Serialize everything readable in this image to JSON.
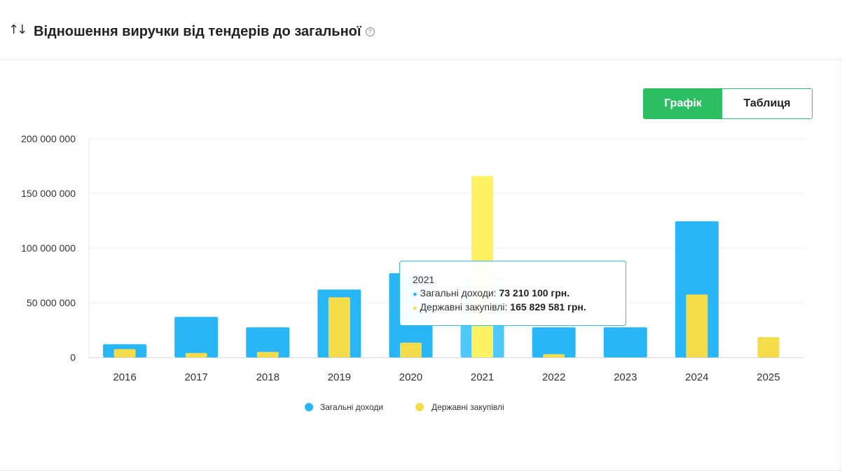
{
  "header": {
    "sort_icon": "↑↓",
    "title": "Відношення виручки від тендерів до загальної",
    "help_icon": "?"
  },
  "toggle": {
    "graph_label": "Графік",
    "table_label": "Таблиця",
    "active": "graph"
  },
  "colors": {
    "total": "#29b6f6",
    "total_highlight": "#4fc9fb",
    "gov": "#f4dc4a",
    "gov_highlight": "#fff263",
    "accent": "#2dbd63"
  },
  "chart_data": {
    "type": "bar",
    "title": "Відношення виручки від тендерів до загальної",
    "categories": [
      "2016",
      "2017",
      "2018",
      "2019",
      "2020",
      "2021",
      "2022",
      "2023",
      "2024",
      "2025"
    ],
    "series": [
      {
        "name": "Загальні доходи",
        "values": [
          12000000,
          37000000,
          27500000,
          62000000,
          77000000,
          73210100,
          27500000,
          27500000,
          124500000,
          0
        ]
      },
      {
        "name": "Державні закупівлі",
        "values": [
          7500000,
          4000000,
          5000000,
          55000000,
          13500000,
          165829581,
          3000000,
          0,
          57500000,
          18500000
        ]
      }
    ],
    "ylim": [
      0,
      200000000
    ],
    "yticks": [
      "0",
      "50 000 000",
      "100 000 000",
      "150 000 000",
      "200 000 000"
    ],
    "grid": true,
    "legend": "bottom-center",
    "highlighted_category": "2021"
  },
  "tooltip": {
    "year": "2021",
    "rows": [
      {
        "label": "Загальні доходи:",
        "value": "73 210 100 грн.",
        "color": "#29b6f6"
      },
      {
        "label": "Державні закупівлі:",
        "value": "165 829 581 грн.",
        "color": "#f4dc4a"
      }
    ]
  }
}
